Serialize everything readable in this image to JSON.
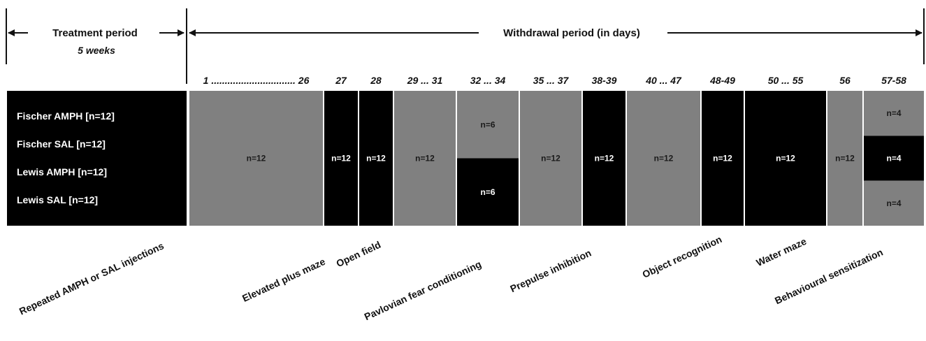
{
  "header": {
    "treatment_title": "Treatment period",
    "treatment_duration": "5 weeks",
    "withdrawal_title": "Withdrawal period (in days)"
  },
  "colors": {
    "dark": "#000000",
    "grey": "#808080",
    "text_on_dark": "#ffffff",
    "text_on_grey": "#1a1a1a"
  },
  "groups": [
    "Fischer AMPH [n=12]",
    "Fischer SAL [n=12]",
    "Lewis AMPH [n=12]",
    "Lewis SAL [n=12]"
  ],
  "phases": [
    {
      "days": "1 ............................... 26",
      "label": "",
      "segments": [
        {
          "fill": "grey",
          "span": 4,
          "n": "n=12"
        }
      ]
    },
    {
      "days": "27",
      "label": "Elevated plus maze",
      "segments": [
        {
          "fill": "dark",
          "span": 4,
          "n": "n=12"
        }
      ]
    },
    {
      "days": "28",
      "label": "Open field",
      "segments": [
        {
          "fill": "dark",
          "span": 4,
          "n": "n=12"
        }
      ]
    },
    {
      "days": "29 ... 31",
      "label": "",
      "segments": [
        {
          "fill": "grey",
          "span": 4,
          "n": "n=12"
        }
      ]
    },
    {
      "days": "32 ... 34",
      "label": "Pavlovian fear conditioning",
      "segments": [
        {
          "fill": "grey",
          "span": 2,
          "n": "n=6"
        },
        {
          "fill": "dark",
          "span": 2,
          "n": "n=6"
        }
      ]
    },
    {
      "days": "35 ... 37",
      "label": "",
      "segments": [
        {
          "fill": "grey",
          "span": 4,
          "n": "n=12"
        }
      ]
    },
    {
      "days": "38-39",
      "label": "Prepulse inhibition",
      "segments": [
        {
          "fill": "dark",
          "span": 4,
          "n": "n=12"
        }
      ]
    },
    {
      "days": "40 ... 47",
      "label": "",
      "segments": [
        {
          "fill": "grey",
          "span": 4,
          "n": "n=12"
        }
      ]
    },
    {
      "days": "48-49",
      "label": "Object recognition",
      "segments": [
        {
          "fill": "dark",
          "span": 4,
          "n": "n=12"
        }
      ]
    },
    {
      "days": "50 ... 55",
      "label": "Water maze",
      "segments": [
        {
          "fill": "dark",
          "span": 4,
          "n": "n=12"
        }
      ]
    },
    {
      "days": "56",
      "label": "",
      "segments": [
        {
          "fill": "grey",
          "span": 4,
          "n": "n=12"
        }
      ]
    },
    {
      "days": "57-58",
      "label": "Behavioural sensitization",
      "segments": [
        {
          "fill": "grey",
          "span": 1,
          "n": "n=4"
        },
        {
          "fill": "dark",
          "span": 1,
          "n": "n=4"
        },
        {
          "fill": "grey",
          "span": 1,
          "n": "n=4"
        }
      ]
    }
  ],
  "treatment_label": "Repeated AMPH or SAL injections"
}
